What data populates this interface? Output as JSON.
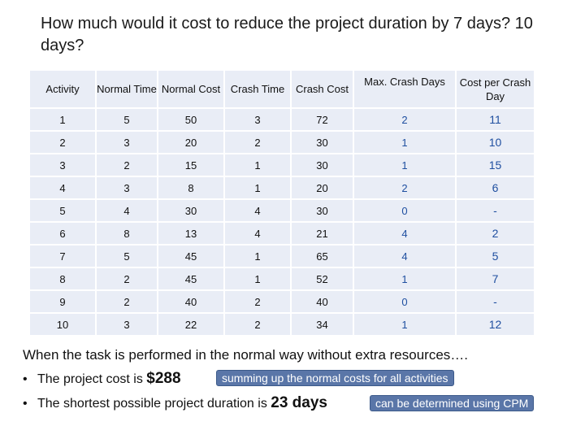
{
  "title": "How much would it cost to reduce the project duration by 7 days? 10 days?",
  "table": {
    "headers": [
      "Activity",
      "Normal Time",
      "Normal Cost",
      "Crash Time",
      "Crash Cost",
      "Max. Crash Days",
      "Cost per Crash Day"
    ],
    "rows": [
      [
        "1",
        "5",
        "50",
        "3",
        "72",
        "2",
        "11"
      ],
      [
        "2",
        "3",
        "20",
        "2",
        "30",
        "1",
        "10"
      ],
      [
        "3",
        "2",
        "15",
        "1",
        "30",
        "1",
        "15"
      ],
      [
        "4",
        "3",
        "8",
        "1",
        "20",
        "2",
        "6"
      ],
      [
        "5",
        "4",
        "30",
        "4",
        "30",
        "0",
        "-"
      ],
      [
        "6",
        "8",
        "13",
        "4",
        "21",
        "4",
        "2"
      ],
      [
        "7",
        "5",
        "45",
        "1",
        "65",
        "4",
        "5"
      ],
      [
        "8",
        "2",
        "45",
        "1",
        "52",
        "1",
        "7"
      ],
      [
        "9",
        "2",
        "40",
        "2",
        "40",
        "0",
        "-"
      ],
      [
        "10",
        "3",
        "22",
        "2",
        "34",
        "1",
        "12"
      ]
    ]
  },
  "summary": {
    "intro": "When the task is performed in the normal way without extra resources….",
    "bullet": "•",
    "cost_text": "The project cost is ",
    "cost_value": "$288",
    "cost_callout": "summing up the normal costs for all activities",
    "duration_text": "The shortest possible project duration is ",
    "duration_value": "23 days",
    "duration_callout": "can be determined using CPM"
  }
}
